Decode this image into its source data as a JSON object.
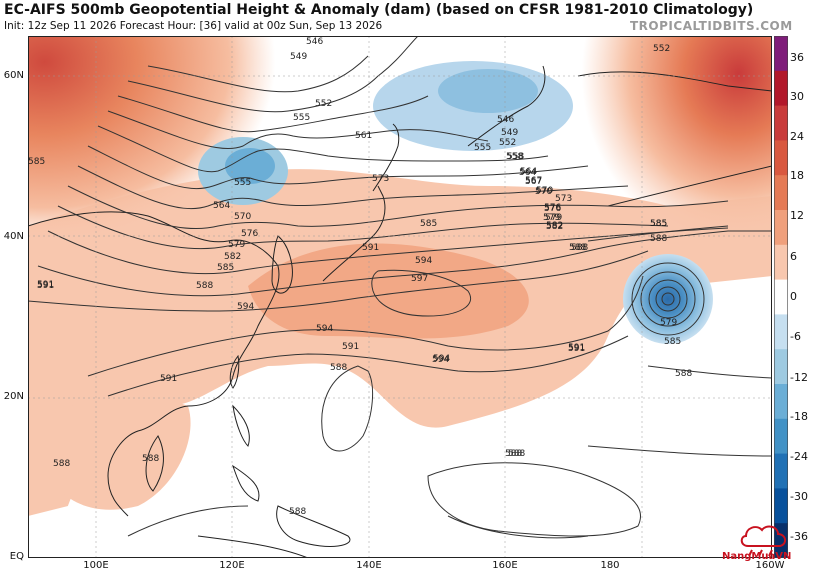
{
  "header": {
    "title": "EC-AIFS 500mb Geopotential Height & Anomaly (dam) (based on CFSR 1981-2010 Climatology)",
    "subtitle": "Init: 12z Sep 11 2026   Forecast Hour: [36]   valid at 00z Sun, Sep 13 2026",
    "site": "TROPICALTIDBITS.COM"
  },
  "axes": {
    "lat_labels": [
      "60N",
      "40N",
      "20N",
      "EQ"
    ],
    "lon_labels": [
      "100E",
      "120E",
      "140E",
      "160E",
      "180",
      "160W"
    ]
  },
  "colorbar": {
    "labels": [
      "36",
      "30",
      "24",
      "18",
      "12",
      "6",
      "0",
      "-6",
      "-12",
      "-18",
      "-24",
      "-30",
      "-36"
    ],
    "colors": [
      "#7f1d7a",
      "#b2182b",
      "#c93b3b",
      "#d9583f",
      "#e57a55",
      "#f0a07c",
      "#f8c7ae",
      "#ffffff",
      "#c6dff0",
      "#9ecae1",
      "#6baed6",
      "#4292c6",
      "#2171b5",
      "#08519c",
      "#08306b"
    ]
  },
  "contours": {
    "labels": [
      "546",
      "549",
      "552",
      "555",
      "561",
      "558",
      "564",
      "567",
      "570",
      "573",
      "576",
      "579",
      "582",
      "585",
      "588",
      "591",
      "594",
      "597",
      "555",
      "564",
      "570",
      "576",
      "579",
      "582",
      "585",
      "588",
      "591",
      "594",
      "585",
      "588",
      "591",
      "594",
      "594",
      "591",
      "588",
      "585",
      "579",
      "591",
      "588",
      "588",
      "588",
      "588",
      "588",
      "552",
      "546",
      "549",
      "552",
      "555",
      "558",
      "564",
      "567",
      "570",
      "573",
      "576",
      "579",
      "582",
      "585",
      "588",
      "591",
      "585",
      "588",
      "594",
      "591"
    ]
  },
  "watermark": {
    "name": "NangMuaVN"
  }
}
